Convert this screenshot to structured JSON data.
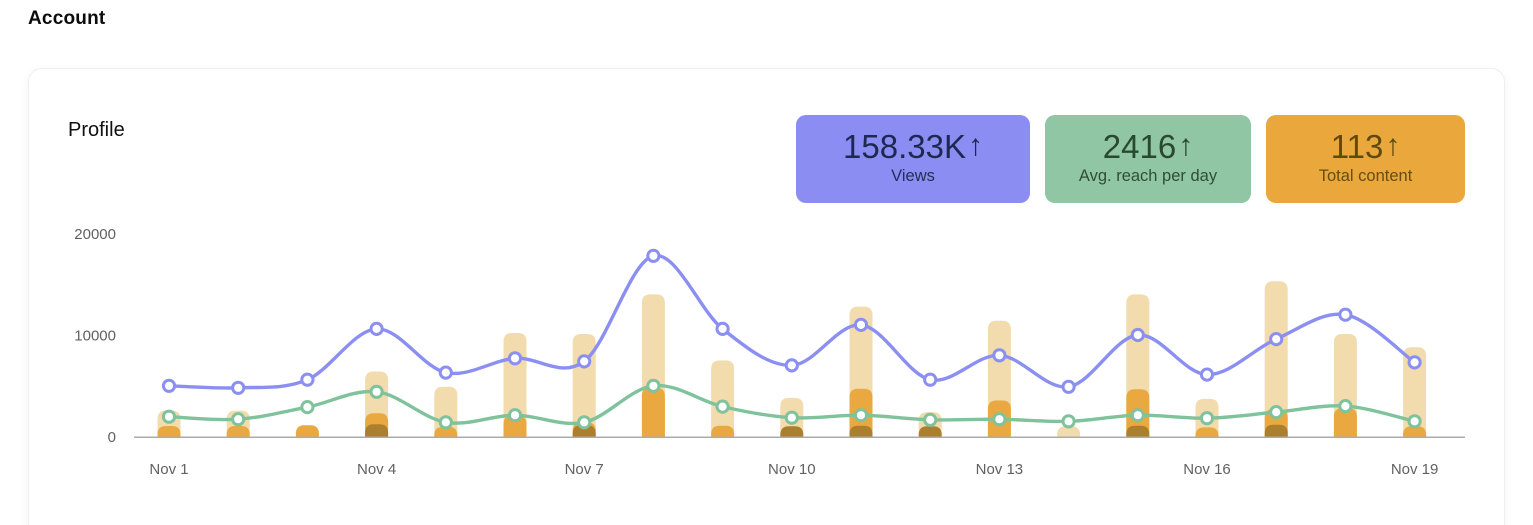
{
  "page": {
    "title": "Account"
  },
  "card": {
    "title": "Profile"
  },
  "stats": [
    {
      "id": "views",
      "value": "158.33K",
      "arrow": "↑",
      "label": "Views",
      "bg": "#8b8df2",
      "text_color": "#1c2950"
    },
    {
      "id": "avg-reach",
      "value": "2416",
      "arrow": "↑",
      "label": "Avg. reach per day",
      "bg": "#90c6a4",
      "text_color": "#29492f"
    },
    {
      "id": "total-content",
      "value": "113",
      "arrow": "↑",
      "label": "Total content",
      "bg": "#e9a73c",
      "text_color": "#5e4a10"
    }
  ],
  "chart_data": {
    "type": "combo bar+line",
    "x": [
      "Nov 1",
      "Nov 2",
      "Nov 3",
      "Nov 4",
      "Nov 5",
      "Nov 6",
      "Nov 7",
      "Nov 8",
      "Nov 9",
      "Nov 10",
      "Nov 11",
      "Nov 12",
      "Nov 13",
      "Nov 14",
      "Nov 15",
      "Nov 16",
      "Nov 17",
      "Nov 18",
      "Nov 19"
    ],
    "x_tick_labels": [
      "Nov 1",
      "Nov 4",
      "Nov 7",
      "Nov 10",
      "Nov 13",
      "Nov 16",
      "Nov 19"
    ],
    "x_tick_every": 3,
    "y_ticks": [
      0,
      10000,
      20000
    ],
    "ylim": [
      0,
      20000
    ],
    "grid": false,
    "legend": "none",
    "series": [
      {
        "name": "bar-light",
        "type": "bar",
        "color": "#f2dcae",
        "values": [
          2550,
          2550,
          0,
          6400,
          4900,
          10200,
          10100,
          14000,
          7500,
          3800,
          12800,
          2400,
          11400,
          1000,
          14000,
          3700,
          15300,
          10100,
          8800
        ]
      },
      {
        "name": "bar-medium",
        "type": "bar",
        "color": "#eaa840",
        "values": [
          1030,
          1030,
          1100,
          2300,
          950,
          2050,
          1400,
          4800,
          1050,
          0,
          4700,
          0,
          3550,
          0,
          4650,
          900,
          2700,
          2800,
          1000
        ]
      },
      {
        "name": "bar-dark",
        "type": "bar",
        "color": "#ab7f2d",
        "values": [
          0,
          0,
          0,
          1200,
          0,
          0,
          1100,
          0,
          0,
          1000,
          1050,
          1000,
          0,
          0,
          1050,
          0,
          1150,
          0,
          0
        ]
      },
      {
        "name": "views-line",
        "type": "line",
        "color": "#8b8ff2",
        "values": [
          5000,
          4800,
          5600,
          10600,
          6300,
          7700,
          7400,
          17800,
          10600,
          7000,
          11000,
          5600,
          8000,
          4900,
          10000,
          6100,
          9600,
          12000,
          7300
        ]
      },
      {
        "name": "reach-line",
        "type": "line",
        "color": "#7fc29b",
        "values": [
          1950,
          1700,
          2900,
          4400,
          1400,
          2100,
          1400,
          5000,
          2950,
          1850,
          2100,
          1650,
          1700,
          1500,
          2100,
          1800,
          2400,
          3000,
          1500
        ]
      }
    ],
    "axis_color": "#ababab",
    "tick_label_color": "#616161"
  }
}
